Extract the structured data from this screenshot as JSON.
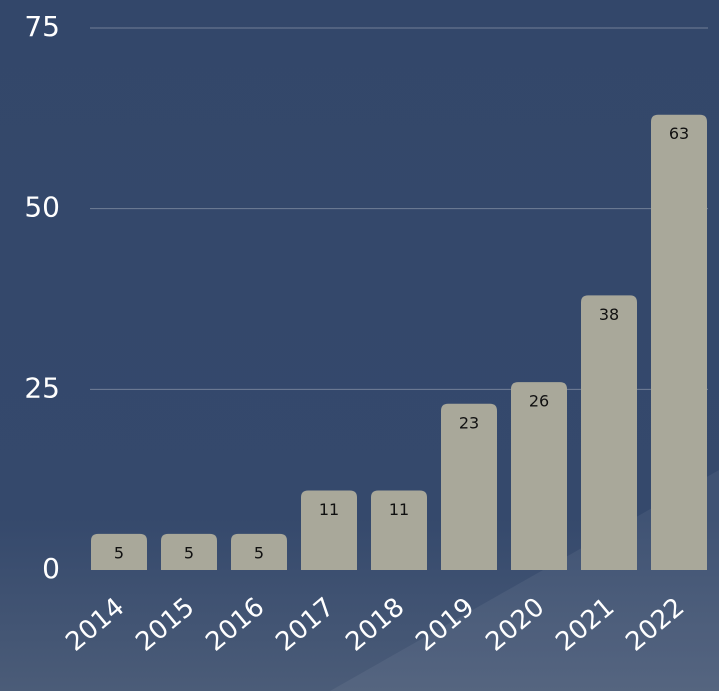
{
  "chart_data": {
    "type": "bar",
    "categories": [
      "2014",
      "2015",
      "2016",
      "2017",
      "2018",
      "2019",
      "2020",
      "2021",
      "2022"
    ],
    "values": [
      5,
      5,
      5,
      11,
      11,
      23,
      26,
      38,
      63
    ],
    "color": "#a9a89a",
    "ylim": [
      0,
      75
    ],
    "yticks": [
      0,
      25,
      50,
      75
    ],
    "grid": true
  }
}
